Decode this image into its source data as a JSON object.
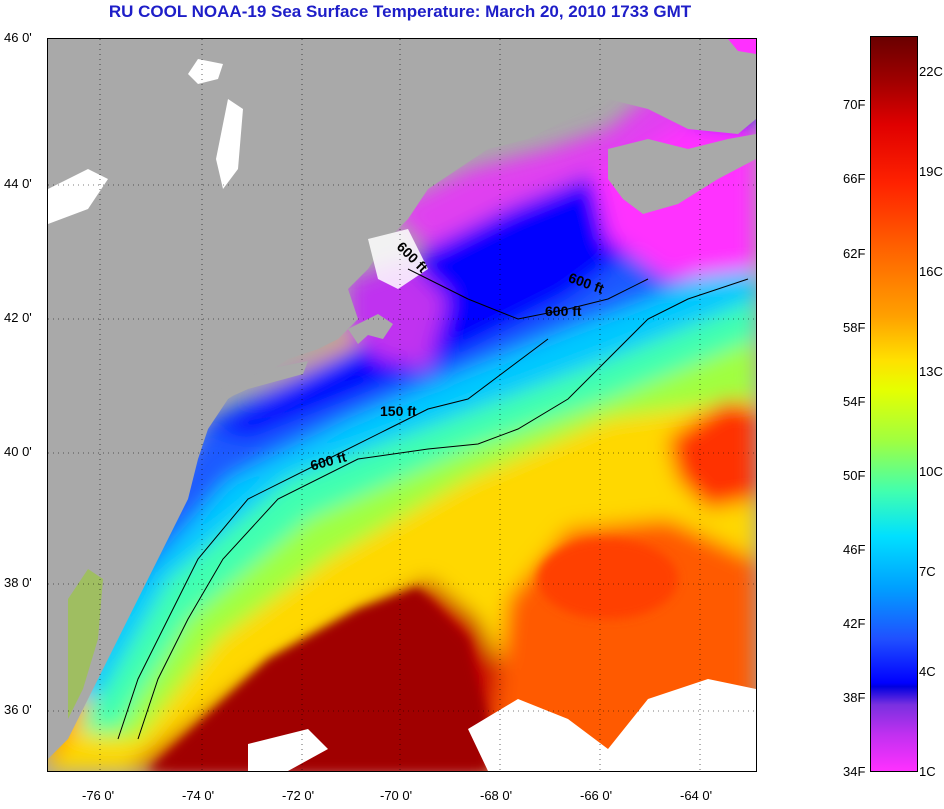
{
  "title": "RU COOL  NOAA-19  Sea Surface Temperature:  March 20, 2010 1733 GMT",
  "map": {
    "lat_ticks": [
      "46 0'",
      "44 0'",
      "42 0'",
      "40 0'",
      "38 0'",
      "36 0'"
    ],
    "lon_ticks": [
      "-76 0'",
      "-74 0'",
      "-72 0'",
      "-70 0'",
      "-68 0'",
      "-66 0'",
      "-64 0'"
    ],
    "contours": [
      "600 ft",
      "600 ft",
      "600 ft",
      "150 ft",
      "600 ft"
    ]
  },
  "colorbar": {
    "fahrenheit": [
      "70F",
      "66F",
      "62F",
      "58F",
      "54F",
      "50F",
      "46F",
      "42F",
      "38F",
      "34F"
    ],
    "celsius": [
      "22C",
      "19C",
      "16C",
      "13C",
      "10C",
      "7C",
      "4C",
      "1C"
    ]
  },
  "colors": {
    "title": "#1e1ec8",
    "land": "#a9a9a9"
  }
}
